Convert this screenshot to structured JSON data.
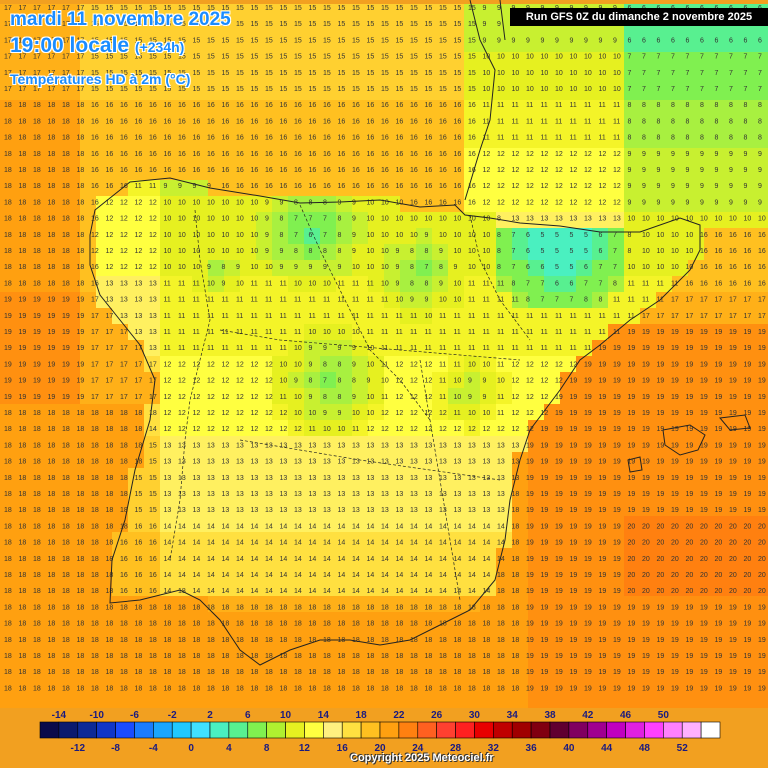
{
  "header": {
    "date": "mardi 11 novembre 2025",
    "time": "19:00 locale",
    "offset": "(+234h)",
    "parameter": "Températures HD à 2m (°C)"
  },
  "run_info": "Run GFS 0Z du dimanche 2 novembre 2025",
  "copyright": "Copyright 2025 Meteociel.fr",
  "legend": {
    "labels_top": [
      "-14",
      "-10",
      "-6",
      "-2",
      "2",
      "6",
      "10",
      "14",
      "18",
      "22",
      "26",
      "30",
      "34",
      "38",
      "42",
      "46",
      "50"
    ],
    "labels_bottom": [
      "-12",
      "-8",
      "-4",
      "0",
      "4",
      "8",
      "12",
      "16",
      "20",
      "24",
      "28",
      "32",
      "36",
      "40",
      "44",
      "48",
      "52"
    ],
    "colors": [
      "#0a0a4a",
      "#0b1a6e",
      "#0d2a96",
      "#1036c8",
      "#1a4cff",
      "#1a7cff",
      "#1aa6ff",
      "#20c8ff",
      "#40e0ff",
      "#4af0c0",
      "#58f090",
      "#80f050",
      "#b0f030",
      "#e6f020",
      "#ffff40",
      "#fff080",
      "#ffe040",
      "#ffc020",
      "#ffa010",
      "#ff8010",
      "#ff6020",
      "#ff4030",
      "#ff2020",
      "#e80000",
      "#c00000",
      "#a00000",
      "#800010",
      "#600030",
      "#800060",
      "#a00090",
      "#c000c0",
      "#e020e0",
      "#ff40ff",
      "#ff80ff",
      "#ffb0ff",
      "#ffffff"
    ]
  },
  "temperature_field": {
    "unit": "°C",
    "palette": {
      "2": "#40e0ff",
      "3": "#40e0ff",
      "4": "#4af0c0",
      "5": "#4af0c0",
      "6": "#58f090",
      "7": "#80f050",
      "8": "#a8f040",
      "9": "#c8f030",
      "10": "#e6f020",
      "11": "#f4f428",
      "12": "#ffff40",
      "13": "#fff060",
      "14": "#ffe040",
      "15": "#ffd030",
      "16": "#ffc020",
      "17": "#ffb018",
      "18": "#ffa010",
      "19": "#ff9010",
      "20": "#ff8010",
      "21": "#ff7010"
    }
  }
}
